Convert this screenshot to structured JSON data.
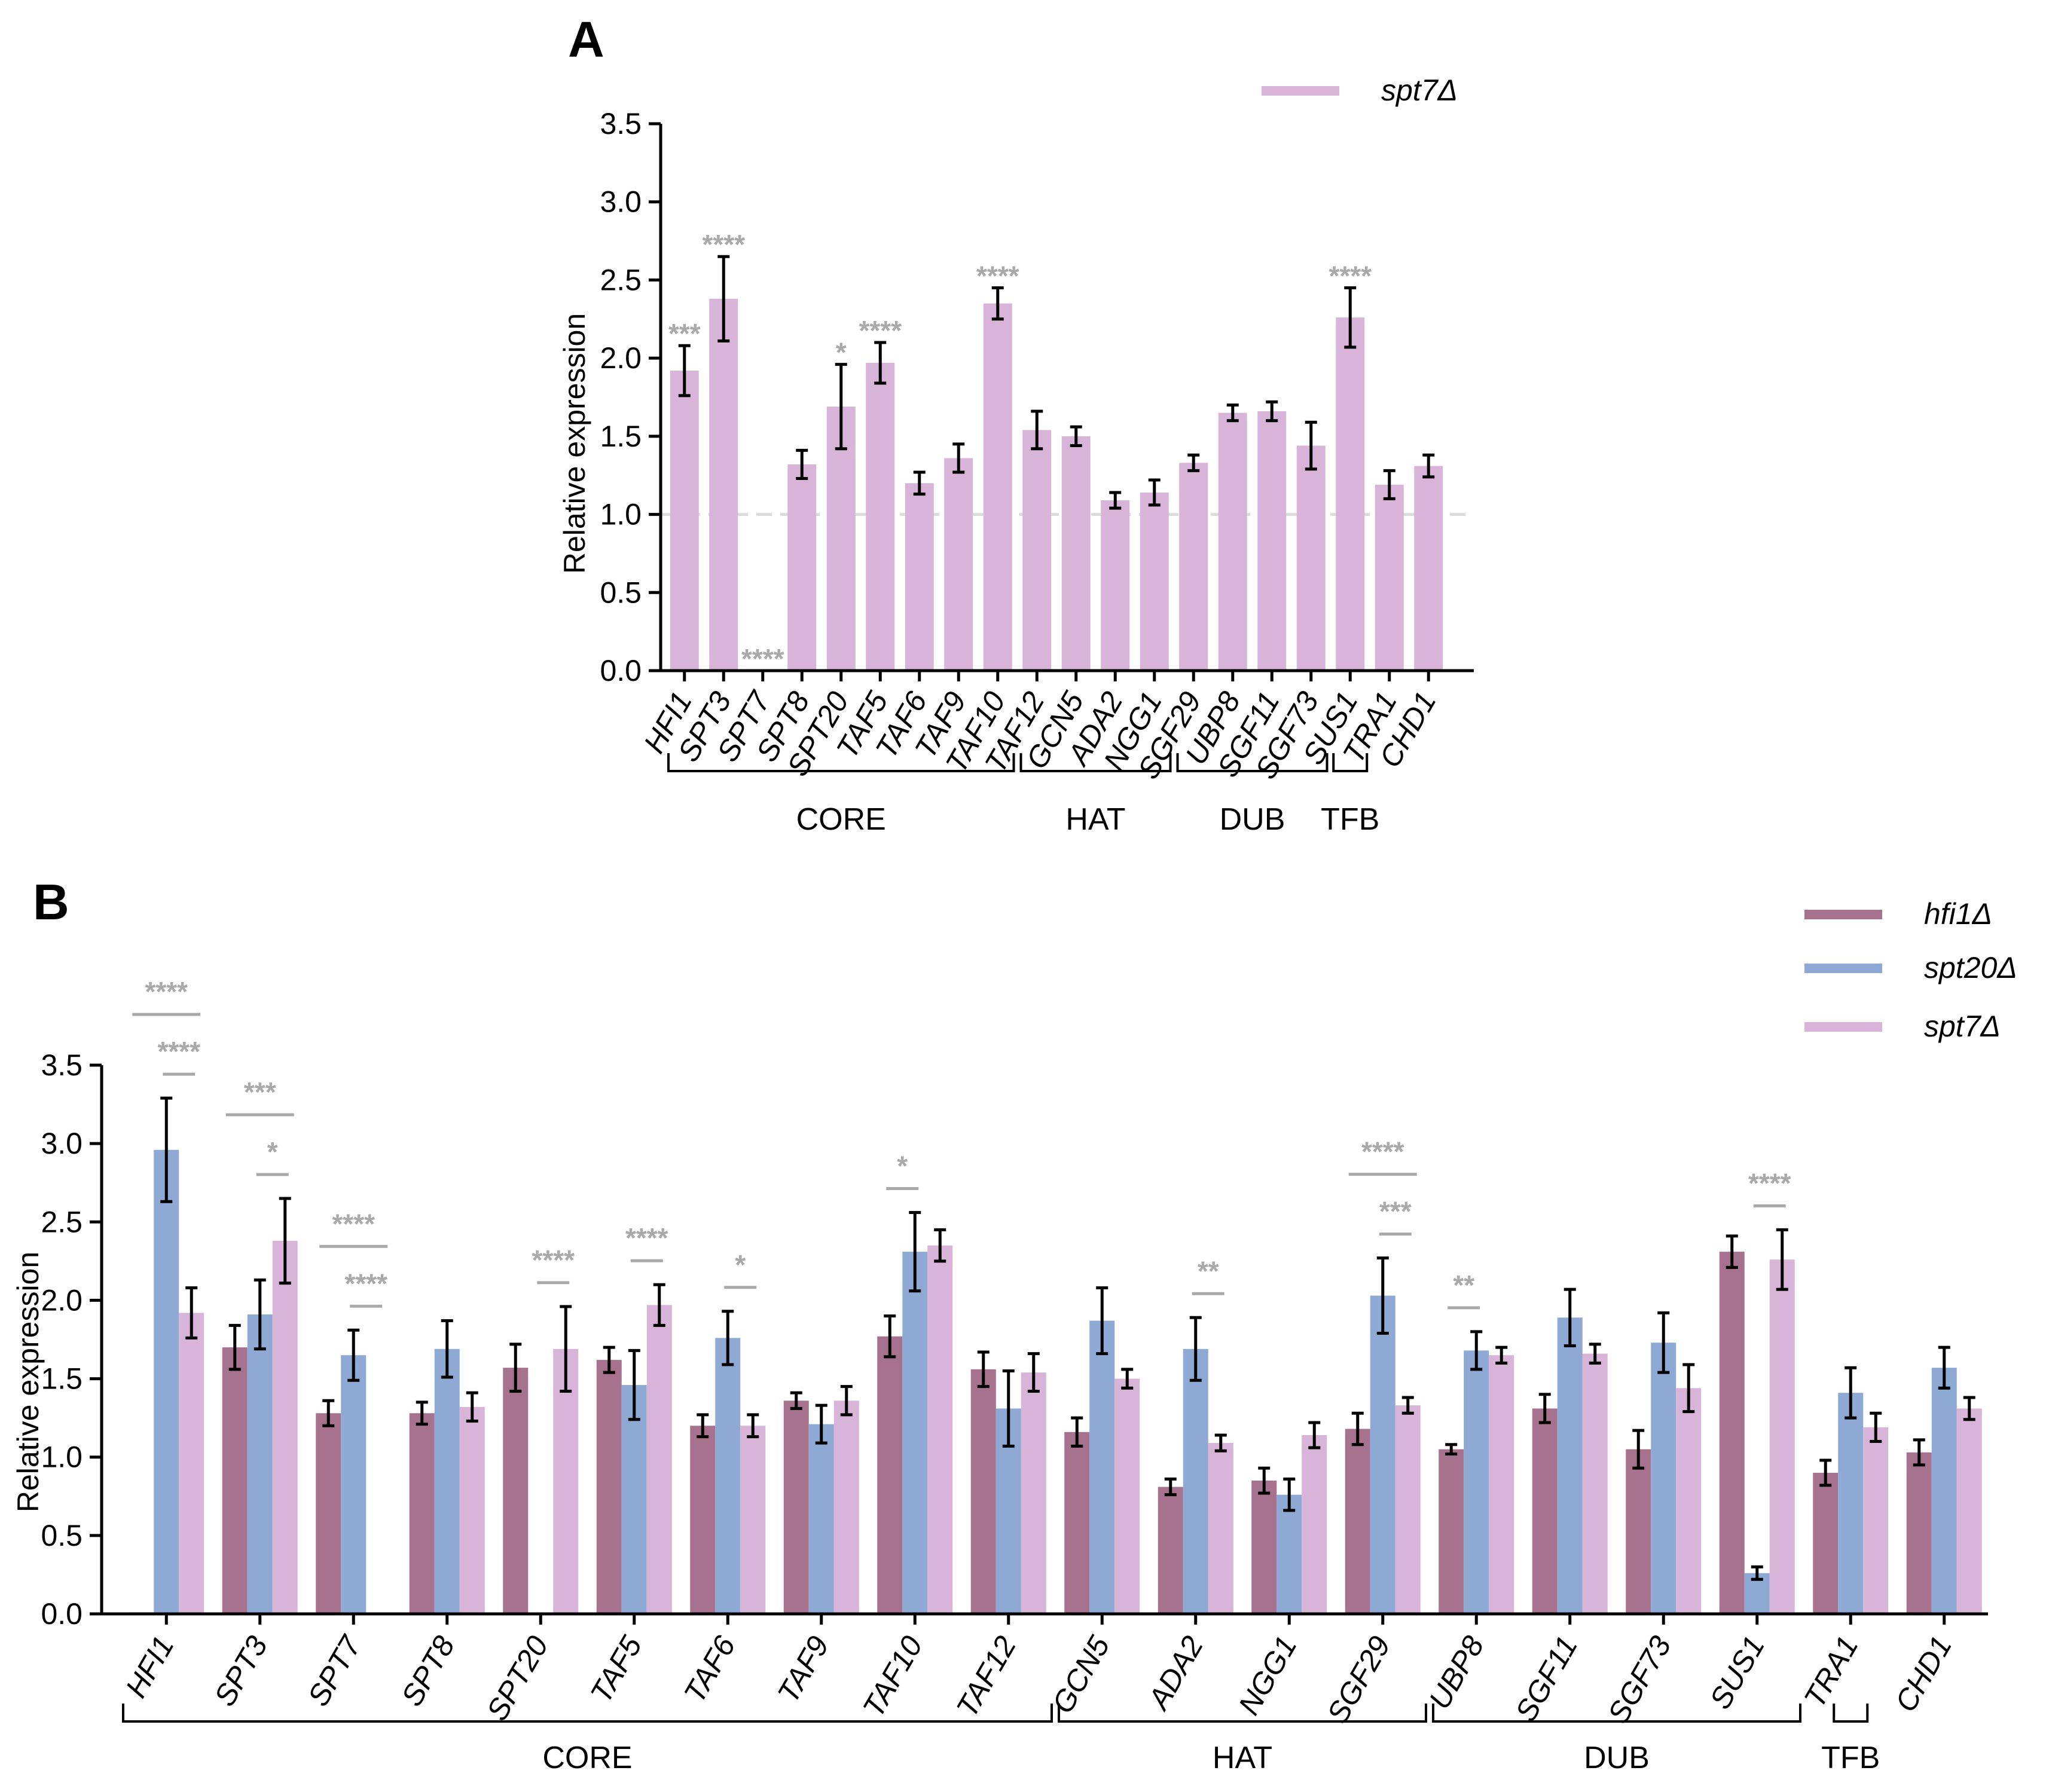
{
  "colors": {
    "hfi1": "#a6728e",
    "spt20": "#8eaad4",
    "spt7": "#d8b4d8",
    "significance": "#a9a9a9"
  },
  "chart_data": [
    {
      "panel": "A",
      "type": "bar",
      "ylabel": "Relative expression",
      "ylim": [
        0,
        3.5
      ],
      "yticks": [
        "0.0",
        "0.5",
        "1.0",
        "1.5",
        "2.0",
        "2.5",
        "3.0",
        "3.5"
      ],
      "reference_line": 1.0,
      "legend": [
        "spt7Δ"
      ],
      "categories": [
        "HFI1",
        "SPT3",
        "SPT7",
        "SPT8",
        "SPT20",
        "TAF5",
        "TAF6",
        "TAF9",
        "TAF10",
        "TAF12",
        "GCN5",
        "ADA2",
        "NGG1",
        "SGF29",
        "UBP8",
        "SGF11",
        "SGF73",
        "SUS1",
        "TRA1",
        "CHD1"
      ],
      "series": [
        {
          "name": "spt7Δ",
          "values": [
            1.92,
            2.38,
            0.0,
            1.32,
            1.69,
            1.97,
            1.2,
            1.36,
            2.35,
            1.54,
            1.5,
            1.09,
            1.14,
            1.33,
            1.65,
            1.66,
            1.44,
            2.26,
            1.19,
            1.31
          ],
          "errors": [
            0.16,
            0.27,
            0.0,
            0.09,
            0.27,
            0.13,
            0.07,
            0.09,
            0.1,
            0.12,
            0.06,
            0.05,
            0.08,
            0.05,
            0.05,
            0.06,
            0.15,
            0.19,
            0.09,
            0.07
          ]
        }
      ],
      "significance": [
        {
          "category": "HFI1",
          "label": "***"
        },
        {
          "category": "SPT3",
          "label": "****"
        },
        {
          "category": "SPT7",
          "label": "****"
        },
        {
          "category": "SPT20",
          "label": "*"
        },
        {
          "category": "TAF5",
          "label": "****"
        },
        {
          "category": "TAF10",
          "label": "****"
        },
        {
          "category": "SUS1",
          "label": "****"
        }
      ],
      "groups": [
        {
          "label": "CORE",
          "from": "HFI1",
          "to": "TAF10"
        },
        {
          "label": "HAT",
          "from": "TAF12",
          "to": "NGG1"
        },
        {
          "label": "DUB",
          "from": "SGF29",
          "to": "SGF73"
        },
        {
          "label": "TFB",
          "from": "SUS1",
          "to": "SUS1"
        }
      ]
    },
    {
      "panel": "B",
      "type": "bar",
      "ylabel": "Relative expression",
      "ylim": [
        0,
        3.5
      ],
      "yticks": [
        "0.0",
        "0.5",
        "1.0",
        "1.5",
        "2.0",
        "2.5",
        "3.0",
        "3.5"
      ],
      "legend": [
        "hfi1Δ",
        "spt20Δ",
        "spt7Δ"
      ],
      "categories": [
        "HFI1",
        "SPT3",
        "SPT7",
        "SPT8",
        "SPT20",
        "TAF5",
        "TAF6",
        "TAF9",
        "TAF10",
        "TAF12",
        "GCN5",
        "ADA2",
        "NGG1",
        "SGF29",
        "UBP8",
        "SGF11",
        "SGF73",
        "SUS1",
        "TRA1",
        "CHD1"
      ],
      "series": [
        {
          "name": "hfi1Δ",
          "values": [
            0.01,
            1.7,
            1.28,
            1.28,
            1.57,
            1.62,
            1.2,
            1.36,
            1.77,
            1.56,
            1.16,
            0.81,
            0.85,
            1.18,
            1.05,
            1.31,
            1.05,
            2.31,
            0.9,
            1.03
          ],
          "errors": [
            0.0,
            0.14,
            0.08,
            0.07,
            0.15,
            0.08,
            0.07,
            0.05,
            0.13,
            0.11,
            0.09,
            0.05,
            0.08,
            0.1,
            0.03,
            0.09,
            0.12,
            0.1,
            0.08,
            0.08
          ]
        },
        {
          "name": "spt20Δ",
          "values": [
            2.96,
            1.91,
            1.65,
            1.69,
            0.0,
            1.46,
            1.76,
            1.21,
            2.31,
            1.31,
            1.87,
            1.69,
            0.76,
            2.03,
            1.68,
            1.89,
            1.73,
            0.26,
            1.41,
            1.57
          ],
          "errors": [
            0.33,
            0.22,
            0.16,
            0.18,
            0.0,
            0.22,
            0.17,
            0.12,
            0.25,
            0.24,
            0.21,
            0.2,
            0.1,
            0.24,
            0.12,
            0.18,
            0.19,
            0.04,
            0.16,
            0.13
          ]
        },
        {
          "name": "spt7Δ",
          "values": [
            1.92,
            2.38,
            0.0,
            1.32,
            1.69,
            1.97,
            1.2,
            1.36,
            2.35,
            1.54,
            1.5,
            1.09,
            1.14,
            1.33,
            1.65,
            1.66,
            1.44,
            2.26,
            1.19,
            1.31
          ],
          "errors": [
            0.16,
            0.27,
            0.0,
            0.09,
            0.27,
            0.13,
            0.07,
            0.09,
            0.1,
            0.12,
            0.06,
            0.05,
            0.08,
            0.05,
            0.05,
            0.06,
            0.15,
            0.19,
            0.09,
            0.07
          ]
        }
      ],
      "significance": [
        {
          "category": "HFI1",
          "pair": "hfi1Δ-spt7Δ",
          "label": "****",
          "level": 2
        },
        {
          "category": "HFI1",
          "pair": "spt20Δ-spt7Δ",
          "label": "****",
          "level": 1
        },
        {
          "category": "SPT3",
          "pair": "hfi1Δ-spt7Δ",
          "label": "***",
          "level": 2
        },
        {
          "category": "SPT3",
          "pair": "spt20Δ-spt7Δ",
          "label": "*",
          "level": 1
        },
        {
          "category": "SPT7",
          "pair": "hfi1Δ-spt7Δ",
          "label": "****",
          "level": 2
        },
        {
          "category": "SPT7",
          "pair": "spt20Δ-spt7Δ",
          "label": "****",
          "level": 1
        },
        {
          "category": "SPT20",
          "pair": "spt20Δ-spt7Δ",
          "label": "****",
          "level": 1
        },
        {
          "category": "TAF5",
          "pair": "spt20Δ-spt7Δ",
          "label": "****",
          "level": 1
        },
        {
          "category": "TAF6",
          "pair": "spt20Δ-spt7Δ",
          "label": "*",
          "level": 1
        },
        {
          "category": "TAF10",
          "pair": "hfi1Δ-spt20Δ",
          "label": "*",
          "level": 1
        },
        {
          "category": "ADA2",
          "pair": "spt20Δ-spt7Δ",
          "label": "**",
          "level": 1
        },
        {
          "category": "SGF29",
          "pair": "hfi1Δ-spt7Δ",
          "label": "****",
          "level": 2
        },
        {
          "category": "SGF29",
          "pair": "spt20Δ-spt7Δ",
          "label": "***",
          "level": 1
        },
        {
          "category": "UBP8",
          "pair": "hfi1Δ-spt20Δ",
          "label": "**",
          "level": 1
        },
        {
          "category": "SUS1",
          "pair": "spt20Δ-spt7Δ",
          "label": "****",
          "level": 1
        }
      ],
      "groups": [
        {
          "label": "CORE",
          "from": "HFI1",
          "to": "TAF12"
        },
        {
          "label": "HAT",
          "from": "GCN5",
          "to": "SGF29"
        },
        {
          "label": "DUB",
          "from": "UBP8",
          "to": "SUS1"
        },
        {
          "label": "TFB",
          "from": "TRA1",
          "to": "TRA1"
        }
      ]
    }
  ]
}
